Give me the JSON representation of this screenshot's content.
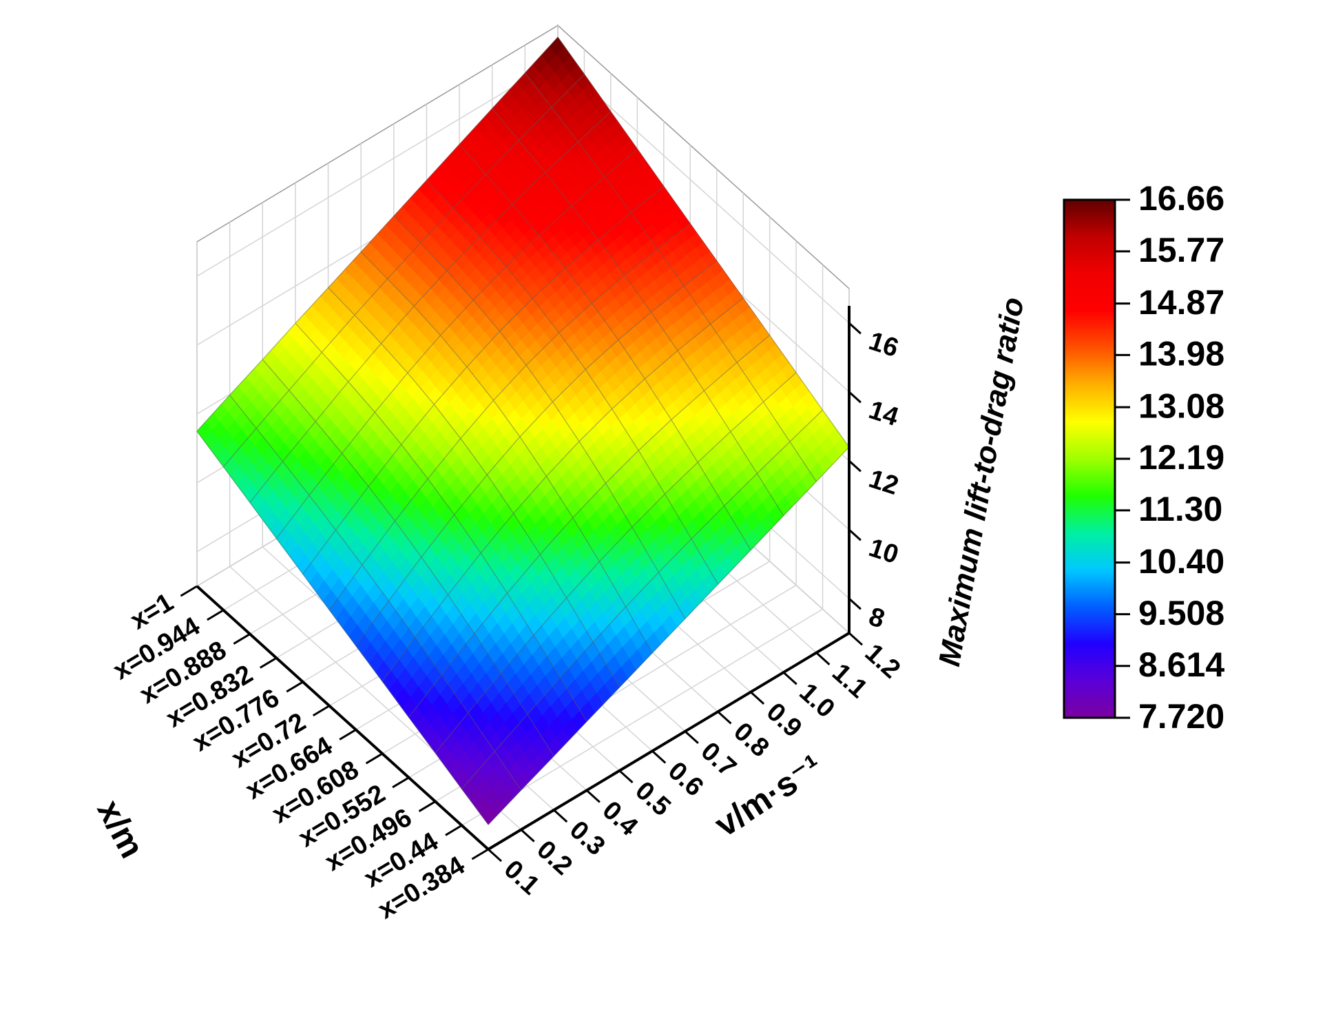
{
  "chart_data": {
    "type": "surface3d",
    "x_label": "x/m",
    "y_label": "v/m·s⁻¹",
    "z_label": "Maximum lift-to-drag ratio",
    "x_categories": [
      "x=0.384",
      "x=0.44",
      "x=0.496",
      "x=0.552",
      "x=0.608",
      "x=0.664",
      "x=0.72",
      "x=0.776",
      "x=0.832",
      "x=0.888",
      "x=0.944",
      "x=1"
    ],
    "y_ticks": [
      0.1,
      0.2,
      0.3,
      0.4,
      0.5,
      0.6,
      0.7,
      0.8,
      0.9,
      {
        "value": 1.0,
        "label": "1.0"
      },
      1.1,
      1.2
    ],
    "ylim": [
      0.1,
      1.2
    ],
    "zlim": [
      7,
      17
    ],
    "zticks": [
      8,
      10,
      12,
      14,
      16
    ],
    "grid": true,
    "z": [
      [
        7.72,
        8.06,
        8.41,
        8.75,
        9.1,
        9.44,
        9.78,
        10.13,
        10.47,
        10.82,
        11.16,
        11.5
      ],
      [
        8.15,
        8.58,
        9.0,
        9.41,
        9.8,
        10.17,
        10.52,
        10.84,
        11.15,
        11.44,
        11.71,
        11.98
      ],
      [
        8.57,
        9.08,
        9.57,
        10.04,
        10.47,
        10.87,
        11.22,
        11.53,
        11.8,
        12.03,
        12.24,
        12.44
      ],
      [
        9.0,
        9.57,
        10.12,
        10.64,
        11.11,
        11.53,
        11.88,
        12.18,
        12.42,
        12.61,
        12.77,
        12.92
      ],
      [
        9.42,
        10.04,
        10.63,
        11.19,
        11.69,
        12.12,
        12.48,
        12.77,
        12.99,
        13.15,
        13.28,
        13.38
      ],
      [
        9.85,
        10.49,
        11.11,
        11.69,
        12.2,
        12.65,
        13.01,
        13.29,
        13.51,
        13.66,
        13.76,
        13.85
      ],
      [
        10.27,
        10.92,
        11.54,
        12.12,
        12.64,
        13.09,
        13.46,
        13.75,
        13.96,
        14.12,
        14.23,
        14.32
      ],
      [
        10.7,
        11.32,
        11.93,
        12.5,
        13.01,
        13.46,
        13.83,
        14.13,
        14.36,
        14.54,
        14.67,
        14.79
      ],
      [
        11.12,
        11.71,
        12.28,
        12.82,
        13.31,
        13.75,
        14.12,
        14.44,
        14.7,
        14.91,
        15.09,
        15.26
      ],
      [
        11.55,
        12.08,
        12.6,
        13.09,
        13.56,
        13.98,
        14.36,
        14.7,
        14.99,
        15.26,
        15.5,
        15.73
      ],
      [
        11.97,
        12.43,
        12.89,
        13.34,
        13.76,
        14.17,
        14.55,
        14.92,
        15.26,
        15.58,
        15.89,
        16.19
      ],
      [
        12.4,
        12.78,
        13.17,
        13.56,
        13.95,
        14.34,
        14.72,
        15.11,
        15.5,
        15.89,
        16.28,
        16.66
      ]
    ],
    "colormap": [
      "#7b00a0",
      "#5a00d8",
      "#2000ff",
      "#0060ff",
      "#00c8ff",
      "#00f0a0",
      "#20ff00",
      "#a0ff00",
      "#ffff00",
      "#ffb000",
      "#ff5000",
      "#ff0000",
      "#f00000",
      "#c00000",
      "#600000"
    ],
    "colorbar": {
      "range": [
        7.72,
        16.66
      ],
      "ticks": [
        {
          "value": 7.72,
          "label": "7.720"
        },
        8.614,
        9.508,
        {
          "value": 10.4,
          "label": "10.40"
        },
        {
          "value": 11.3,
          "label": "11.30"
        },
        12.19,
        13.08,
        13.98,
        14.87,
        15.77,
        16.66
      ]
    }
  }
}
